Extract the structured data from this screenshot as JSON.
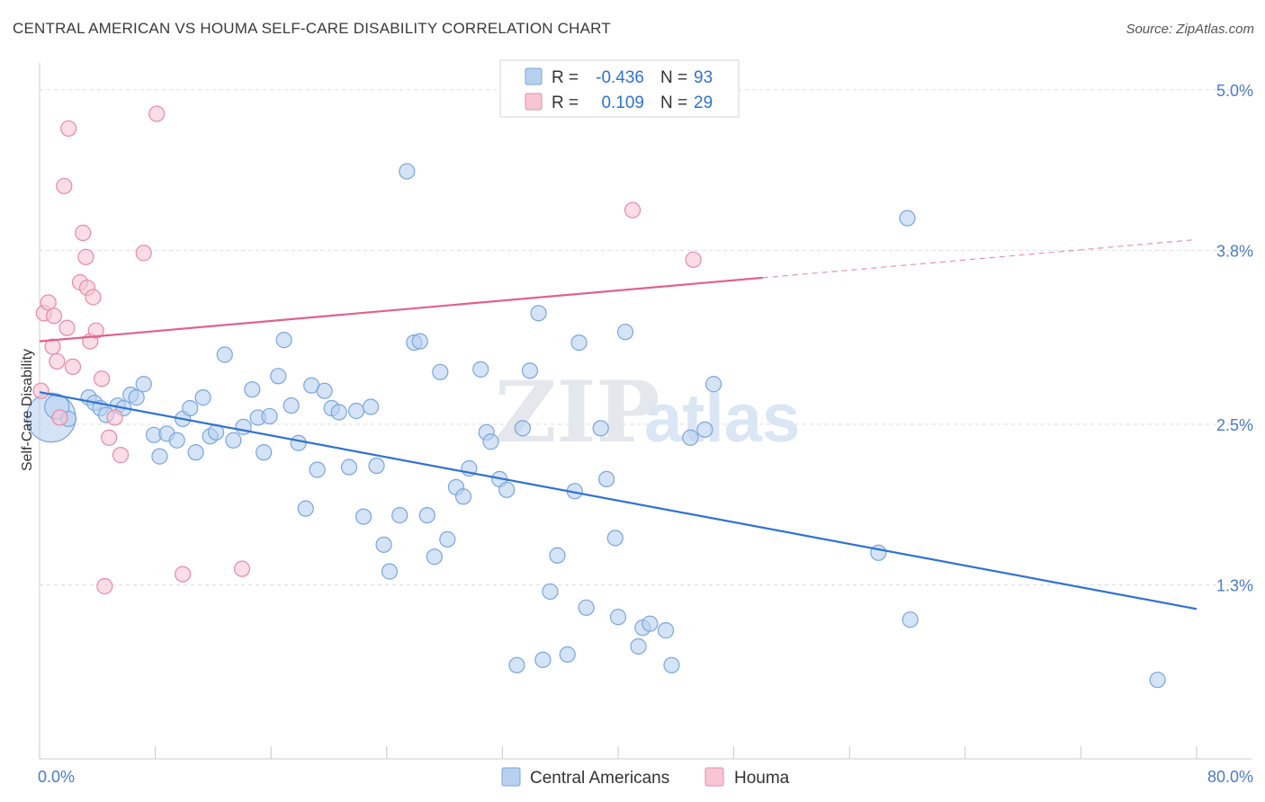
{
  "title": "CENTRAL AMERICAN VS HOUMA SELF-CARE DISABILITY CORRELATION CHART",
  "source": "Source: ZipAtlas.com",
  "watermark": {
    "zip": "ZIP",
    "atlas": "atlas"
  },
  "colors": {
    "blue_fill": "#b8d0f0",
    "blue_stroke": "#7aa6dc",
    "blue_line": "#2f72d1",
    "pink_fill": "#f7c6d5",
    "pink_stroke": "#e68aa8",
    "pink_line": "#e0628a",
    "tick_text": "#4a7cc7",
    "grid": "#dddddd"
  },
  "legend": {
    "rows": [
      {
        "r_label": "R =",
        "r_value": "-0.436",
        "n_label": "N =",
        "n_value": "93"
      },
      {
        "r_label": "R =",
        "r_value": "0.109",
        "n_label": "N =",
        "n_value": "29"
      }
    ]
  },
  "bottom_legend": [
    "Central Americans",
    "Houma"
  ],
  "chart_data": {
    "type": "scatter",
    "xlabel": "",
    "ylabel": "Self-Care Disability",
    "x_unit": "%",
    "y_unit": "%",
    "xlim": [
      0,
      80
    ],
    "ylim": [
      0,
      5.2
    ],
    "x_tick_labels": [
      {
        "value": 0,
        "label": "0.0%"
      },
      {
        "value": 80,
        "label": "80.0%"
      }
    ],
    "y_tick_labels": [
      {
        "value": 5.0,
        "label": "5.0%"
      },
      {
        "value": 3.8,
        "label": "3.8%"
      },
      {
        "value": 2.5,
        "label": "2.5%"
      },
      {
        "value": 1.3,
        "label": "1.3%"
      }
    ],
    "x_minor_ticks": [
      0,
      8,
      16,
      24,
      32,
      40,
      48,
      56,
      64,
      72,
      80
    ],
    "grid": true,
    "legend_position": "top-center",
    "series": [
      {
        "name": "Central Americans",
        "r": -0.436,
        "n": 93,
        "trend": {
          "x": [
            0,
            80
          ],
          "y": [
            2.74,
            1.12
          ],
          "solid_to": 80
        },
        "points": [
          [
            0.8,
            2.55,
            3.2
          ],
          [
            1.2,
            2.63,
            1.6
          ],
          [
            2.0,
            2.54,
            1.0
          ],
          [
            3.4,
            2.7,
            1.0
          ],
          [
            3.8,
            2.66,
            1.0
          ],
          [
            4.2,
            2.62,
            1.0
          ],
          [
            4.6,
            2.57,
            1.0
          ],
          [
            5.4,
            2.64,
            1.0
          ],
          [
            5.8,
            2.62,
            1.0
          ],
          [
            6.3,
            2.72,
            1.0
          ],
          [
            6.7,
            2.7,
            1.0
          ],
          [
            7.2,
            2.8,
            1.0
          ],
          [
            7.9,
            2.42,
            1.0
          ],
          [
            8.3,
            2.26,
            1.0
          ],
          [
            8.8,
            2.43,
            1.0
          ],
          [
            9.5,
            2.38,
            1.0
          ],
          [
            9.9,
            2.54,
            1.0
          ],
          [
            10.4,
            2.62,
            1.0
          ],
          [
            10.8,
            2.29,
            1.0
          ],
          [
            11.3,
            2.7,
            1.0
          ],
          [
            11.8,
            2.41,
            1.0
          ],
          [
            12.2,
            2.44,
            1.0
          ],
          [
            12.8,
            3.02,
            1.0
          ],
          [
            13.4,
            2.38,
            1.0
          ],
          [
            14.1,
            2.48,
            1.0
          ],
          [
            14.7,
            2.76,
            1.0
          ],
          [
            15.1,
            2.55,
            1.0
          ],
          [
            15.5,
            2.29,
            1.0
          ],
          [
            15.9,
            2.56,
            1.0
          ],
          [
            16.5,
            2.86,
            1.0
          ],
          [
            16.9,
            3.13,
            1.0
          ],
          [
            17.4,
            2.64,
            1.0
          ],
          [
            17.9,
            2.36,
            1.0
          ],
          [
            18.4,
            1.87,
            1.0
          ],
          [
            18.8,
            2.79,
            1.0
          ],
          [
            19.2,
            2.16,
            1.0
          ],
          [
            19.7,
            2.75,
            1.0
          ],
          [
            20.2,
            2.62,
            1.0
          ],
          [
            20.7,
            2.59,
            1.0
          ],
          [
            21.4,
            2.18,
            1.0
          ],
          [
            21.9,
            2.6,
            1.0
          ],
          [
            22.4,
            1.81,
            1.0
          ],
          [
            22.9,
            2.63,
            1.0
          ],
          [
            23.3,
            2.19,
            1.0
          ],
          [
            23.8,
            1.6,
            1.0
          ],
          [
            24.2,
            1.4,
            1.0
          ],
          [
            24.9,
            1.82,
            1.0
          ],
          [
            25.4,
            4.39,
            1.0
          ],
          [
            25.9,
            3.11,
            1.0
          ],
          [
            26.3,
            3.12,
            1.0
          ],
          [
            26.8,
            1.82,
            1.0
          ],
          [
            27.3,
            1.51,
            1.0
          ],
          [
            27.7,
            2.89,
            1.0
          ],
          [
            28.2,
            1.64,
            1.0
          ],
          [
            28.8,
            2.03,
            1.0
          ],
          [
            29.3,
            1.96,
            1.0
          ],
          [
            29.7,
            2.17,
            1.0
          ],
          [
            30.5,
            2.91,
            1.0
          ],
          [
            30.9,
            2.44,
            1.0
          ],
          [
            31.2,
            2.37,
            1.0
          ],
          [
            31.8,
            2.09,
            1.0
          ],
          [
            32.3,
            2.01,
            1.0
          ],
          [
            33.0,
            0.7,
            1.0
          ],
          [
            33.4,
            2.47,
            1.0
          ],
          [
            33.9,
            2.9,
            1.0
          ],
          [
            34.5,
            3.33,
            1.0
          ],
          [
            34.8,
            0.74,
            1.0
          ],
          [
            35.3,
            1.25,
            1.0
          ],
          [
            35.8,
            1.52,
            1.0
          ],
          [
            36.5,
            0.78,
            1.0
          ],
          [
            37.0,
            2.0,
            1.0
          ],
          [
            37.3,
            3.11,
            1.0
          ],
          [
            37.8,
            1.13,
            1.0
          ],
          [
            38.8,
            2.47,
            1.0
          ],
          [
            39.2,
            2.09,
            1.0
          ],
          [
            39.8,
            1.65,
            1.0
          ],
          [
            40.0,
            1.06,
            1.0
          ],
          [
            40.5,
            3.19,
            1.0
          ],
          [
            41.4,
            0.84,
            1.0
          ],
          [
            41.7,
            0.98,
            1.0
          ],
          [
            42.2,
            1.01,
            1.0
          ],
          [
            43.3,
            0.96,
            1.0
          ],
          [
            43.7,
            0.7,
            1.0
          ],
          [
            45.0,
            2.4,
            1.0
          ],
          [
            46.0,
            2.46,
            1.0
          ],
          [
            46.6,
            2.8,
            1.0
          ],
          [
            58.0,
            1.54,
            1.0
          ],
          [
            60.0,
            4.04,
            1.0
          ],
          [
            60.2,
            1.04,
            1.0
          ],
          [
            77.3,
            0.59,
            1.0
          ]
        ]
      },
      {
        "name": "Houma",
        "r": 0.109,
        "n": 29,
        "trend": {
          "x": [
            0,
            80
          ],
          "y": [
            3.12,
            3.88
          ],
          "solid_to": 50
        },
        "points": [
          [
            0.1,
            2.75
          ],
          [
            0.3,
            3.33
          ],
          [
            0.6,
            3.41
          ],
          [
            0.9,
            3.08
          ],
          [
            1.0,
            3.31
          ],
          [
            1.2,
            2.97
          ],
          [
            1.4,
            2.55
          ],
          [
            1.7,
            4.28
          ],
          [
            1.9,
            3.22
          ],
          [
            2.0,
            4.71
          ],
          [
            2.3,
            2.93
          ],
          [
            2.8,
            3.56
          ],
          [
            3.0,
            3.93
          ],
          [
            3.2,
            3.75
          ],
          [
            3.3,
            3.52
          ],
          [
            3.5,
            3.12
          ],
          [
            3.7,
            3.45
          ],
          [
            3.9,
            3.2
          ],
          [
            4.3,
            2.84
          ],
          [
            4.5,
            1.29
          ],
          [
            4.8,
            2.4
          ],
          [
            5.2,
            2.55
          ],
          [
            5.6,
            2.27
          ],
          [
            7.2,
            3.78
          ],
          [
            8.1,
            4.82
          ],
          [
            9.9,
            1.38
          ],
          [
            14.0,
            1.42
          ],
          [
            41.0,
            4.1
          ],
          [
            45.2,
            3.73
          ]
        ]
      }
    ]
  }
}
